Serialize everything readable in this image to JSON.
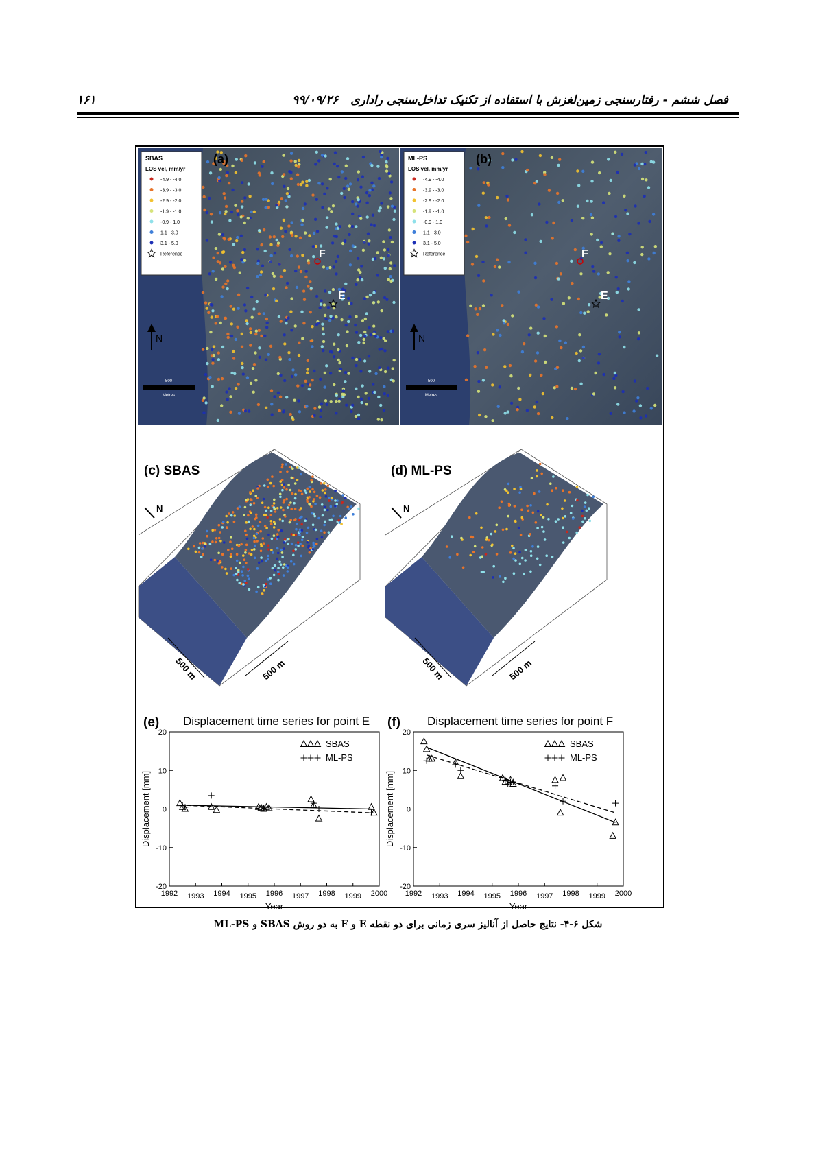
{
  "header": {
    "page_number": "۱۶۱",
    "title": "فصل ششم - رفتارسنجی زمین‌لغزش با استفاده از تکنیک تداخل‌سنجی راداری",
    "date": "۹۹/۰۹/۲۶"
  },
  "legend_title": "LOS vel, mm/yr",
  "legend_entries": [
    {
      "label": "-4.9 - -4.0",
      "color": "#c8281e"
    },
    {
      "label": "-3.9 - -3.0",
      "color": "#e8742a"
    },
    {
      "label": "-2.9 - -2.0",
      "color": "#f2c230"
    },
    {
      "label": "-1.9 - -1.0",
      "color": "#d6e37a"
    },
    {
      "label": "-0.9 - 1.0",
      "color": "#8fe0ea"
    },
    {
      "label": "1.1 - 3.0",
      "color": "#3f7fd9"
    },
    {
      "label": "3.1 - 5.0",
      "color": "#1c2fb5"
    },
    {
      "label": "Reference"
    }
  ],
  "maps": [
    {
      "method": "SBAS",
      "label": "(a)",
      "point_f": "F",
      "point_e": "E",
      "north": "N",
      "scale": "500",
      "scale_unit": "Metres"
    },
    {
      "method": "ML-PS",
      "label": "(b)",
      "point_f": "F",
      "point_e": "E",
      "north": "N",
      "scale": "500",
      "scale_unit": "Metres"
    }
  ],
  "views3d": [
    {
      "label": "(c) SBAS",
      "north": "N",
      "scale_a": "500 m",
      "scale_b": "500 m"
    },
    {
      "label": "(d) ML-PS",
      "north": "N",
      "scale_a": "500 m",
      "scale_b": "500 m"
    }
  ],
  "chart_data": [
    {
      "type": "scatter",
      "panel": "(e)",
      "title": "Displacement time series for point E",
      "x_label": "Year",
      "y_label": "Displacement [mm]",
      "xlim": [
        1992,
        2000
      ],
      "xticks": [
        1992,
        1993,
        1994,
        1995,
        1996,
        1997,
        1998,
        1999,
        2000
      ],
      "ylim": [
        -20,
        20
      ],
      "yticks": [
        -20,
        -10,
        0,
        10,
        20
      ],
      "series": [
        {
          "name": "SBAS",
          "marker": "triangle",
          "color": "#000000",
          "x": [
            1992.4,
            1992.5,
            1992.6,
            1993.6,
            1993.8,
            1995.4,
            1995.5,
            1995.6,
            1995.7,
            1995.8,
            1997.4,
            1997.5,
            1997.7,
            1999.7,
            1999.8
          ],
          "values": [
            1.5,
            0.5,
            0,
            0.5,
            -0.3,
            0.5,
            0.3,
            0,
            0.5,
            0.2,
            2.5,
            1,
            -2.5,
            0.5,
            -1
          ],
          "fit": {
            "x": [
              1992.4,
              1999.7
            ],
            "values": [
              1,
              0
            ],
            "dashed": false
          }
        },
        {
          "name": "ML-PS",
          "marker": "plus",
          "color": "#000000",
          "x": [
            1992.5,
            1992.6,
            1993.6,
            1995.5,
            1995.6,
            1995.8,
            1997.5,
            1997.7,
            1999.7
          ],
          "values": [
            1,
            0.5,
            3.5,
            0.5,
            0.3,
            0.5,
            1.5,
            0,
            -1
          ],
          "fit": {
            "x": [
              1992.4,
              1999.7
            ],
            "values": [
              1,
              -1
            ],
            "dashed": true
          }
        }
      ]
    },
    {
      "type": "scatter",
      "panel": "(f)",
      "title": "Displacement time series for point F",
      "x_label": "Year",
      "y_label": "Displacement [mm]",
      "xlim": [
        1992,
        2000
      ],
      "xticks": [
        1992,
        1993,
        1994,
        1995,
        1996,
        1997,
        1998,
        1999,
        2000
      ],
      "ylim": [
        -20,
        20
      ],
      "yticks": [
        -20,
        -10,
        0,
        10,
        20
      ],
      "series": [
        {
          "name": "SBAS",
          "marker": "triangle",
          "color": "#000000",
          "x": [
            1992.4,
            1992.5,
            1992.6,
            1992.7,
            1993.6,
            1993.8,
            1995.4,
            1995.5,
            1995.7,
            1995.8,
            1997.4,
            1997.6,
            1997.7,
            1999.6,
            1999.7
          ],
          "values": [
            17.5,
            15.5,
            13,
            13,
            12,
            8.5,
            8,
            7,
            7.5,
            6.5,
            7.5,
            -1,
            8,
            -7,
            -3.5
          ],
          "fit": {
            "x": [
              1992.5,
              1999.7
            ],
            "values": [
              16,
              -3.5
            ],
            "dashed": false
          }
        },
        {
          "name": "ML-PS",
          "marker": "plus",
          "color": "#000000",
          "x": [
            1992.5,
            1992.6,
            1993.6,
            1993.8,
            1995.5,
            1995.6,
            1995.7,
            1995.8,
            1997.4,
            1997.7,
            1999.7
          ],
          "values": [
            12.5,
            13,
            11.5,
            10,
            7.5,
            6.5,
            7,
            7,
            6,
            2,
            1.5
          ],
          "fit": {
            "x": [
              1992.5,
              1999.7
            ],
            "values": [
              14,
              -1
            ],
            "dashed": true
          }
        }
      ]
    }
  ],
  "caption": "شکل ۶-۴- نتایج حاصل از آنالیز سری زمانی برای دو نقطه E و F به دو روش SBAS و ML-PS"
}
